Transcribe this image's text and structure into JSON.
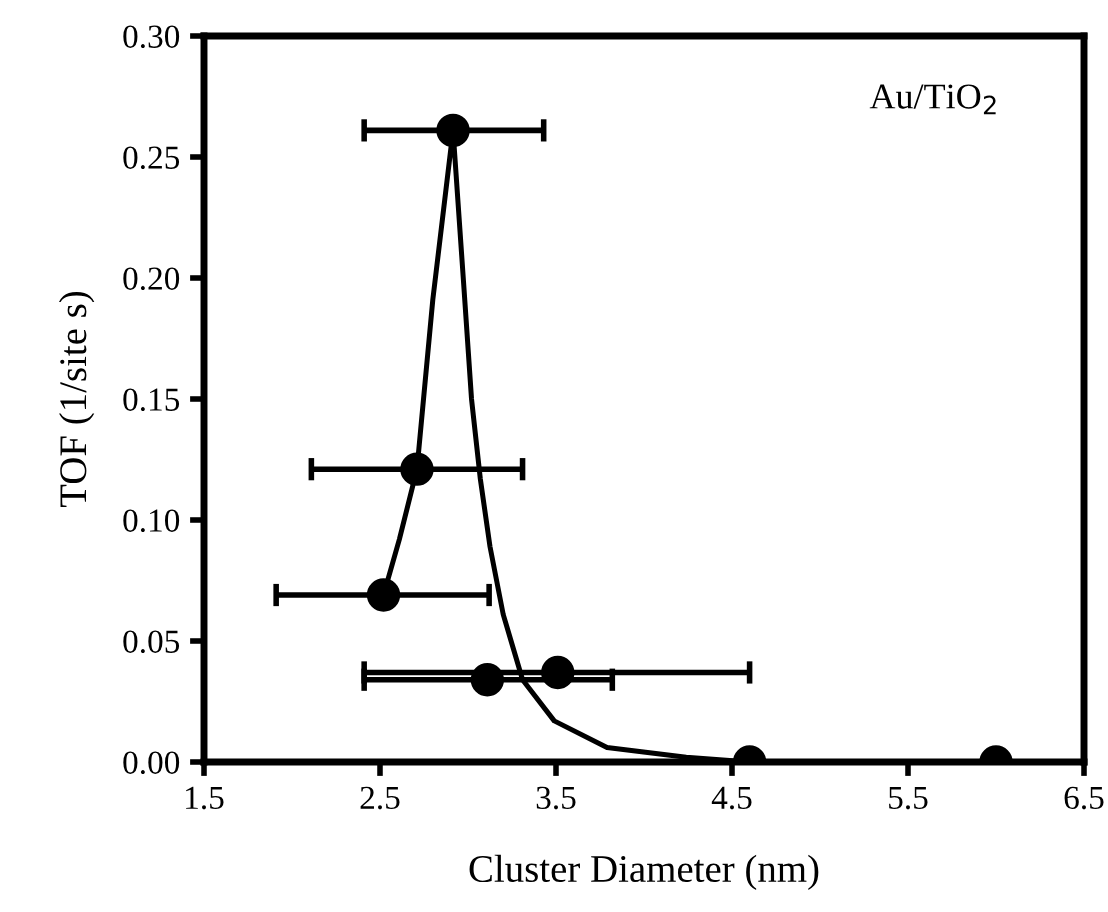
{
  "chart_data": {
    "type": "scatter",
    "xlabel": "Cluster Diameter (nm)",
    "ylabel": "TOF (1/site s)",
    "annotations": [
      "Au/TiO$_{2}$"
    ],
    "xlim": [
      1.5,
      6.5
    ],
    "ylim": [
      0,
      0.3
    ],
    "xticks": [
      1.5,
      2.5,
      3.5,
      4.5,
      5.5,
      6.5
    ],
    "yticks": [
      {
        "value": 0,
        "label": "0.00"
      },
      {
        "value": 0.05,
        "label": "0.05"
      },
      {
        "value": 0.1,
        "label": "0.10"
      },
      {
        "value": 0.15,
        "label": "0.15"
      },
      {
        "value": 0.2,
        "label": "0.20"
      },
      {
        "value": 0.25,
        "label": "0.25"
      },
      {
        "value": 0.3,
        "label": "0.30"
      }
    ],
    "grid": false,
    "legend": false,
    "marker": "circle",
    "series": [
      {
        "type": "line",
        "color": "#000000",
        "marker": "none",
        "line_style": "solid",
        "x": [
          2.52,
          2.61,
          2.71,
          2.8,
          2.915,
          2.974,
          3.02,
          3.07,
          3.125,
          3.2,
          3.31,
          3.49,
          3.79,
          4.24,
          4.6,
          6.0,
          6.5
        ],
        "values": [
          0.069,
          0.092,
          0.121,
          0.191,
          0.261,
          0.199,
          0.15,
          0.117,
          0.089,
          0.061,
          0.034,
          0.017,
          0.006,
          0.002,
          0.0,
          0.0,
          0.0
        ]
      },
      {
        "color": "#000000",
        "x": [
          2.915,
          2.71,
          2.52,
          3.11,
          3.51,
          4.6,
          6.0
        ],
        "values": [
          0.261,
          0.121,
          0.069,
          0.034,
          0.037,
          0.0,
          0.0
        ],
        "xerrors": [
          [
            2.41,
            3.43
          ],
          [
            2.11,
            3.31
          ],
          [
            1.91,
            3.12
          ],
          [
            2.41,
            3.82
          ],
          [
            2.41,
            4.6
          ],
          null,
          null
        ]
      }
    ]
  }
}
